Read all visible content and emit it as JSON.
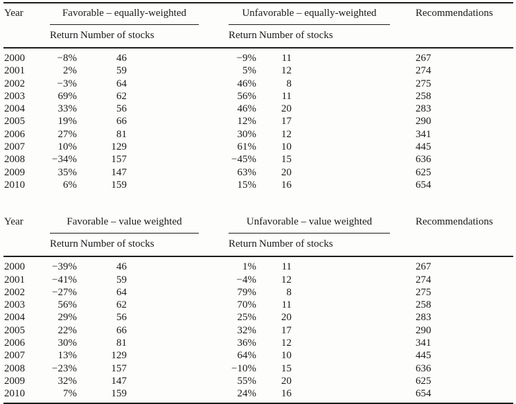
{
  "page": {
    "background": "#fdfdfc",
    "text_color": "#1a1a1a",
    "rule_color": "#1d1d1d"
  },
  "tables": [
    {
      "name": "equally-weighted",
      "columns": {
        "year": "Year",
        "return": "Return",
        "stocks": "Number of stocks",
        "recommendations": "Recommendations"
      },
      "group_favorable": "Favorable – equally-weighted",
      "group_unfavorable": "Unfavorable – equally-weighted",
      "rows": [
        {
          "year": "2000",
          "fav_return": "−8%",
          "fav_stocks": "46",
          "unfav_return": "−9%",
          "unfav_stocks": "11",
          "recommendations": "267"
        },
        {
          "year": "2001",
          "fav_return": "2%",
          "fav_stocks": "59",
          "unfav_return": "5%",
          "unfav_stocks": "12",
          "recommendations": "274"
        },
        {
          "year": "2002",
          "fav_return": "−3%",
          "fav_stocks": "64",
          "unfav_return": "46%",
          "unfav_stocks": "8",
          "recommendations": "275"
        },
        {
          "year": "2003",
          "fav_return": "69%",
          "fav_stocks": "62",
          "unfav_return": "56%",
          "unfav_stocks": "11",
          "recommendations": "258"
        },
        {
          "year": "2004",
          "fav_return": "33%",
          "fav_stocks": "56",
          "unfav_return": "46%",
          "unfav_stocks": "20",
          "recommendations": "283"
        },
        {
          "year": "2005",
          "fav_return": "19%",
          "fav_stocks": "66",
          "unfav_return": "12%",
          "unfav_stocks": "17",
          "recommendations": "290"
        },
        {
          "year": "2006",
          "fav_return": "27%",
          "fav_stocks": "81",
          "unfav_return": "30%",
          "unfav_stocks": "12",
          "recommendations": "341"
        },
        {
          "year": "2007",
          "fav_return": "10%",
          "fav_stocks": "129",
          "unfav_return": "61%",
          "unfav_stocks": "10",
          "recommendations": "445"
        },
        {
          "year": "2008",
          "fav_return": "−34%",
          "fav_stocks": "157",
          "unfav_return": "−45%",
          "unfav_stocks": "15",
          "recommendations": "636"
        },
        {
          "year": "2009",
          "fav_return": "35%",
          "fav_stocks": "147",
          "unfav_return": "63%",
          "unfav_stocks": "20",
          "recommendations": "625"
        },
        {
          "year": "2010",
          "fav_return": "6%",
          "fav_stocks": "159",
          "unfav_return": "15%",
          "unfav_stocks": "16",
          "recommendations": "654"
        }
      ]
    },
    {
      "name": "value-weighted",
      "columns": {
        "year": "Year",
        "return": "Return",
        "stocks": "Number of stocks",
        "recommendations": "Recommendations"
      },
      "group_favorable": "Favorable – value weighted",
      "group_unfavorable": "Unfavorable – value weighted",
      "rows": [
        {
          "year": "2000",
          "fav_return": "−39%",
          "fav_stocks": "46",
          "unfav_return": "1%",
          "unfav_stocks": "11",
          "recommendations": "267"
        },
        {
          "year": "2001",
          "fav_return": "−41%",
          "fav_stocks": "59",
          "unfav_return": "−4%",
          "unfav_stocks": "12",
          "recommendations": "274"
        },
        {
          "year": "2002",
          "fav_return": "−27%",
          "fav_stocks": "64",
          "unfav_return": "79%",
          "unfav_stocks": "8",
          "recommendations": "275"
        },
        {
          "year": "2003",
          "fav_return": "56%",
          "fav_stocks": "62",
          "unfav_return": "70%",
          "unfav_stocks": "11",
          "recommendations": "258"
        },
        {
          "year": "2004",
          "fav_return": "29%",
          "fav_stocks": "56",
          "unfav_return": "25%",
          "unfav_stocks": "20",
          "recommendations": "283"
        },
        {
          "year": "2005",
          "fav_return": "22%",
          "fav_stocks": "66",
          "unfav_return": "32%",
          "unfav_stocks": "17",
          "recommendations": "290"
        },
        {
          "year": "2006",
          "fav_return": "30%",
          "fav_stocks": "81",
          "unfav_return": "36%",
          "unfav_stocks": "12",
          "recommendations": "341"
        },
        {
          "year": "2007",
          "fav_return": "13%",
          "fav_stocks": "129",
          "unfav_return": "64%",
          "unfav_stocks": "10",
          "recommendations": "445"
        },
        {
          "year": "2008",
          "fav_return": "−23%",
          "fav_stocks": "157",
          "unfav_return": "−10%",
          "unfav_stocks": "15",
          "recommendations": "636"
        },
        {
          "year": "2009",
          "fav_return": "32%",
          "fav_stocks": "147",
          "unfav_return": "55%",
          "unfav_stocks": "20",
          "recommendations": "625"
        },
        {
          "year": "2010",
          "fav_return": "7%",
          "fav_stocks": "159",
          "unfav_return": "24%",
          "unfav_stocks": "16",
          "recommendations": "654"
        }
      ]
    }
  ]
}
